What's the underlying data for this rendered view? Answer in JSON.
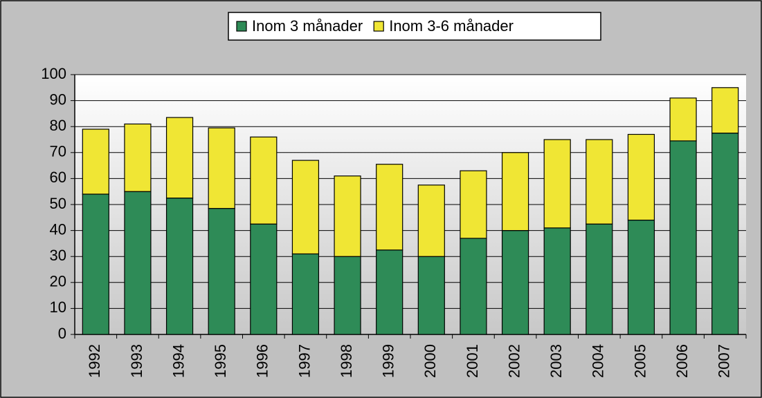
{
  "chart_data": {
    "type": "stacked_bar",
    "categories": [
      "1992",
      "1993",
      "1994",
      "1995",
      "1996",
      "1997",
      "1998",
      "1999",
      "2000",
      "2001",
      "2002",
      "2003",
      "2004",
      "2005",
      "2006",
      "2007"
    ],
    "series": [
      {
        "name": "Inom 3 månader",
        "color": "#2e8b57",
        "values": [
          54,
          55,
          52.5,
          48.5,
          42.5,
          31,
          30,
          32.5,
          30,
          37,
          40,
          41,
          42.5,
          44,
          74.5,
          77.5
        ]
      },
      {
        "name": "Inom 3-6 månader",
        "color": "#f0e634",
        "values": [
          25,
          26,
          31,
          31,
          33.5,
          36,
          31,
          33,
          27.5,
          26,
          30,
          34,
          32.5,
          33,
          16.5,
          17.5
        ]
      }
    ],
    "ylim": [
      0,
      100
    ],
    "yticks": [
      0,
      10,
      20,
      30,
      40,
      50,
      60,
      70,
      80,
      90,
      100
    ],
    "grid": true,
    "legend": "top"
  }
}
